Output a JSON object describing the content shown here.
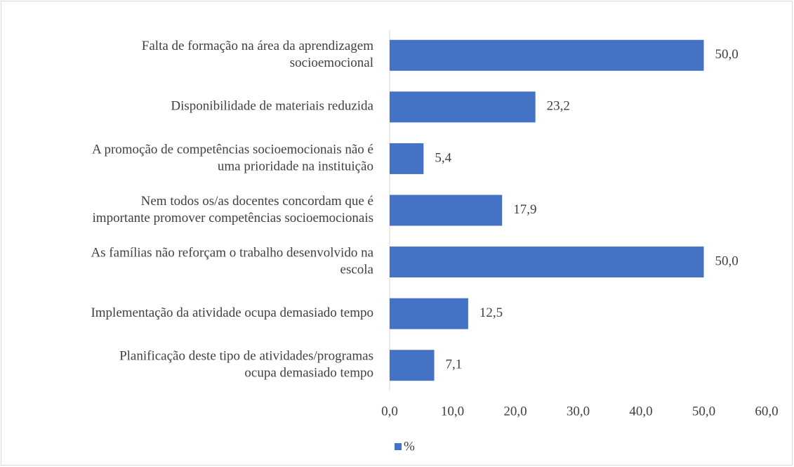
{
  "chart_data": {
    "type": "bar",
    "orientation": "horizontal",
    "categories": [
      [
        "Falta de formação na área da aprendizagem",
        "socioemocional"
      ],
      [
        "Disponibilidade de materiais reduzida"
      ],
      [
        "A promoção de competências socioemocionais não é",
        "uma prioridade na instituição"
      ],
      [
        "Nem todos os/as docentes concordam que é",
        "importante promover competências socioemocionais"
      ],
      [
        "As famílias não reforçam o trabalho desenvolvido na",
        "escola"
      ],
      [
        "Implementação da atividade ocupa demasiado tempo"
      ],
      [
        "Planificação deste tipo de atividades/programas",
        "ocupa demasiado tempo"
      ]
    ],
    "series": [
      {
        "name": "%",
        "color": "#4472c4",
        "values": [
          50.0,
          23.2,
          5.4,
          17.9,
          50.0,
          12.5,
          7.1
        ],
        "value_labels": [
          "50,0",
          "23,2",
          "5,4",
          "17,9",
          "50,0",
          "12,5",
          "7,1"
        ]
      }
    ],
    "xlim": [
      0,
      60
    ],
    "xticks": [
      {
        "value": 0,
        "label": "0,0"
      },
      {
        "value": 10,
        "label": "10,0"
      },
      {
        "value": 20,
        "label": "20,0"
      },
      {
        "value": 30,
        "label": "30,0"
      },
      {
        "value": 40,
        "label": "40,0"
      },
      {
        "value": 50,
        "label": "50,0"
      },
      {
        "value": 60,
        "label": "60,0"
      }
    ],
    "grid": false,
    "legend": "bottom"
  }
}
